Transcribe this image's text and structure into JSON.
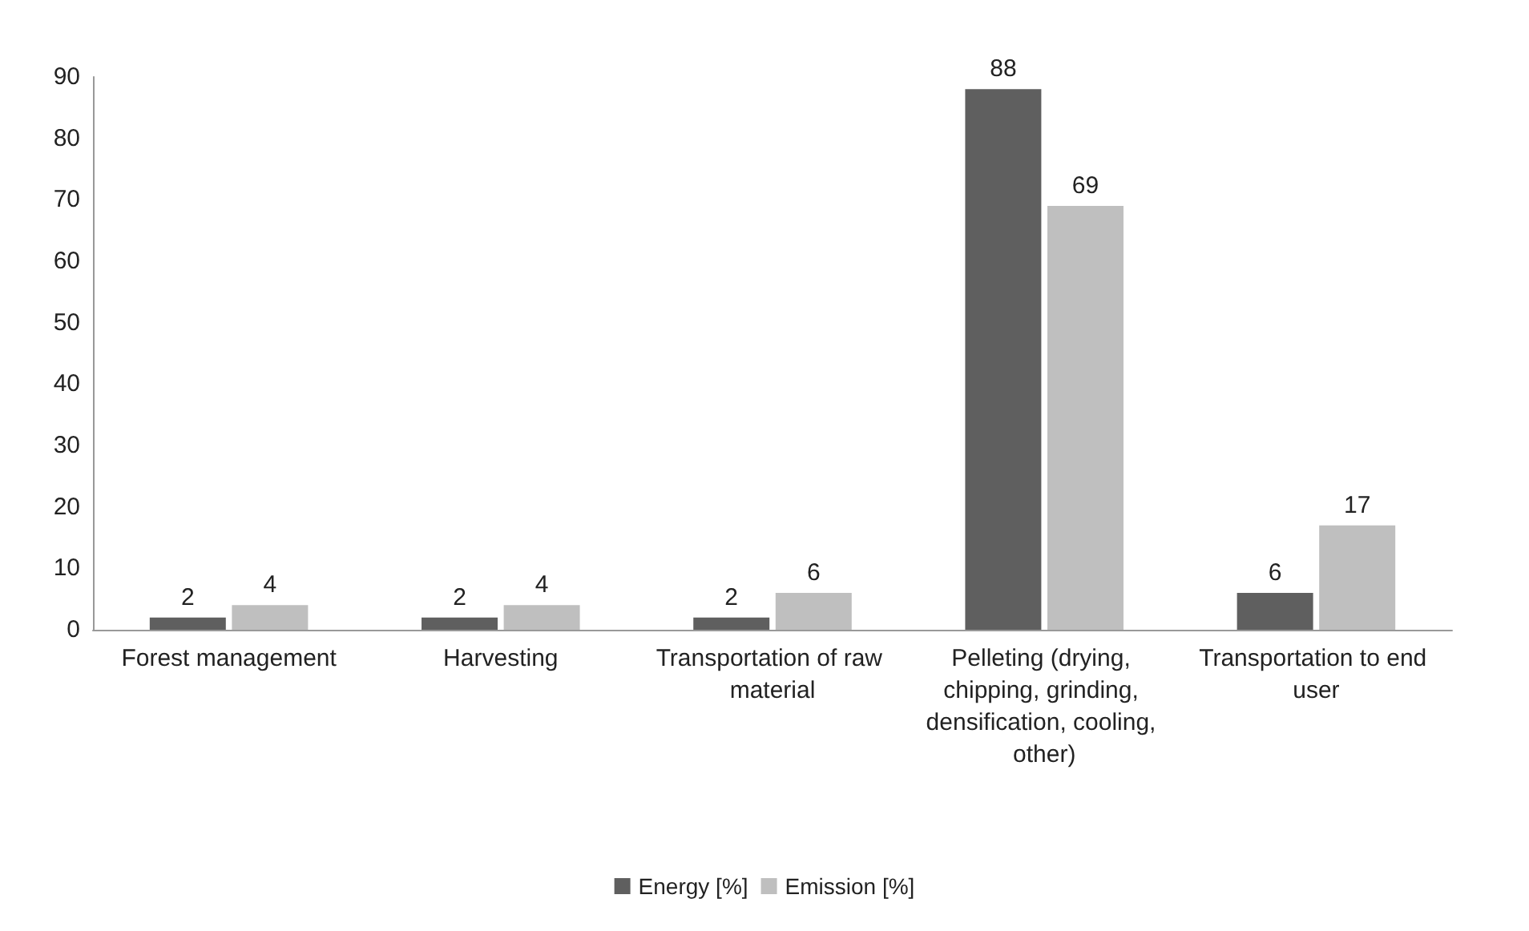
{
  "chart_data": {
    "type": "bar",
    "categories": [
      "Forest management",
      "Harvesting",
      "Transportation of raw material",
      "Pelleting (drying, chipping, grinding, densification, cooling, other)",
      "Transportation to end user"
    ],
    "series": [
      {
        "name": "Energy [%]",
        "color": "#5f5f5f",
        "values": [
          2,
          2,
          2,
          88,
          6
        ]
      },
      {
        "name": "Emission [%]",
        "color": "#bfbfbf",
        "values": [
          4,
          4,
          6,
          69,
          17
        ]
      }
    ],
    "ylim": [
      0,
      90
    ],
    "yticks": [
      0,
      10,
      20,
      30,
      40,
      50,
      60,
      70,
      80,
      90
    ],
    "grid": false,
    "legend": "bottom",
    "data_labels": true
  }
}
